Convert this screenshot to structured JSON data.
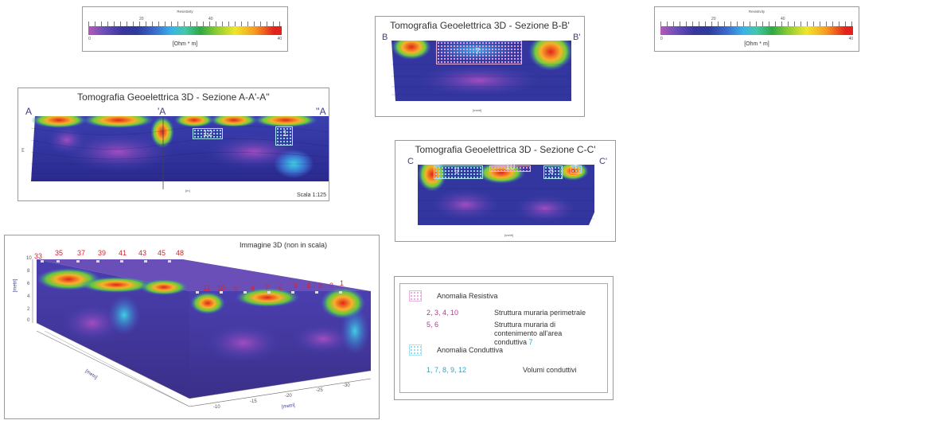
{
  "colorbar": {
    "title": "Resistivity",
    "ticks": [
      "0",
      "20",
      "40"
    ],
    "end_labels": [
      "0",
      "40"
    ],
    "units": "[Ohm * m]",
    "colors": [
      "#b659b7",
      "#38359e",
      "#3b6fcf",
      "#39b3e8",
      "#2ea844",
      "#f0e62b",
      "#f79a22",
      "#e2231c"
    ]
  },
  "section_aa": {
    "title": "Tomografia Geoelettrica 3D - Sezione A-A'-A''",
    "left_label": "A",
    "mid_label": "'A",
    "right_label": "''A",
    "scale": "Scala 1:125",
    "anomalies": [
      "12",
      "1"
    ]
  },
  "section_bb": {
    "title": "Tomografia Geoelettrica 3D - Sezione B-B'",
    "left_label": "B",
    "right_label": "B'",
    "anomalies": [
      "7"
    ]
  },
  "section_cc": {
    "title": "Tomografia Geoelettrica 3D - Sezione C-C'",
    "left_label": "C",
    "right_label": "C'",
    "anomalies": [
      "9",
      "10",
      "8",
      "7"
    ]
  },
  "view3d": {
    "title": "Immagine 3D (non in scala)",
    "top_numbers": [
      "33",
      "35",
      "37",
      "39",
      "41",
      "43",
      "45",
      "48"
    ],
    "front_numbers": [
      "11",
      "10",
      "9",
      "8",
      "7",
      "6",
      "5",
      "4",
      "3",
      "2",
      "1"
    ],
    "y_axis_label": "[metri]",
    "y_ticks": [
      "10",
      "8",
      "6",
      "4",
      "2",
      "0"
    ],
    "x_axis_label": "[metri]",
    "x_ticks": [
      "-10",
      "-15",
      "-20",
      "-25",
      "-30"
    ],
    "depth_axis_label": "[metri]"
  },
  "legend": {
    "resistive_title": "Anomalia Resistiva",
    "resistive_items": [
      {
        "nums": "2, 3, 4, 10",
        "text": "Struttura muraria perimetrale"
      },
      {
        "nums": "5, 6",
        "text": "Struttura muraria di contenimento all'area conduttiva",
        "tail": "7"
      }
    ],
    "conductive_title": "Anomalia Conduttiva",
    "conductive_items": [
      {
        "nums": "1, 7, 8, 9, 12",
        "text": "Volumi conduttivi"
      }
    ]
  }
}
